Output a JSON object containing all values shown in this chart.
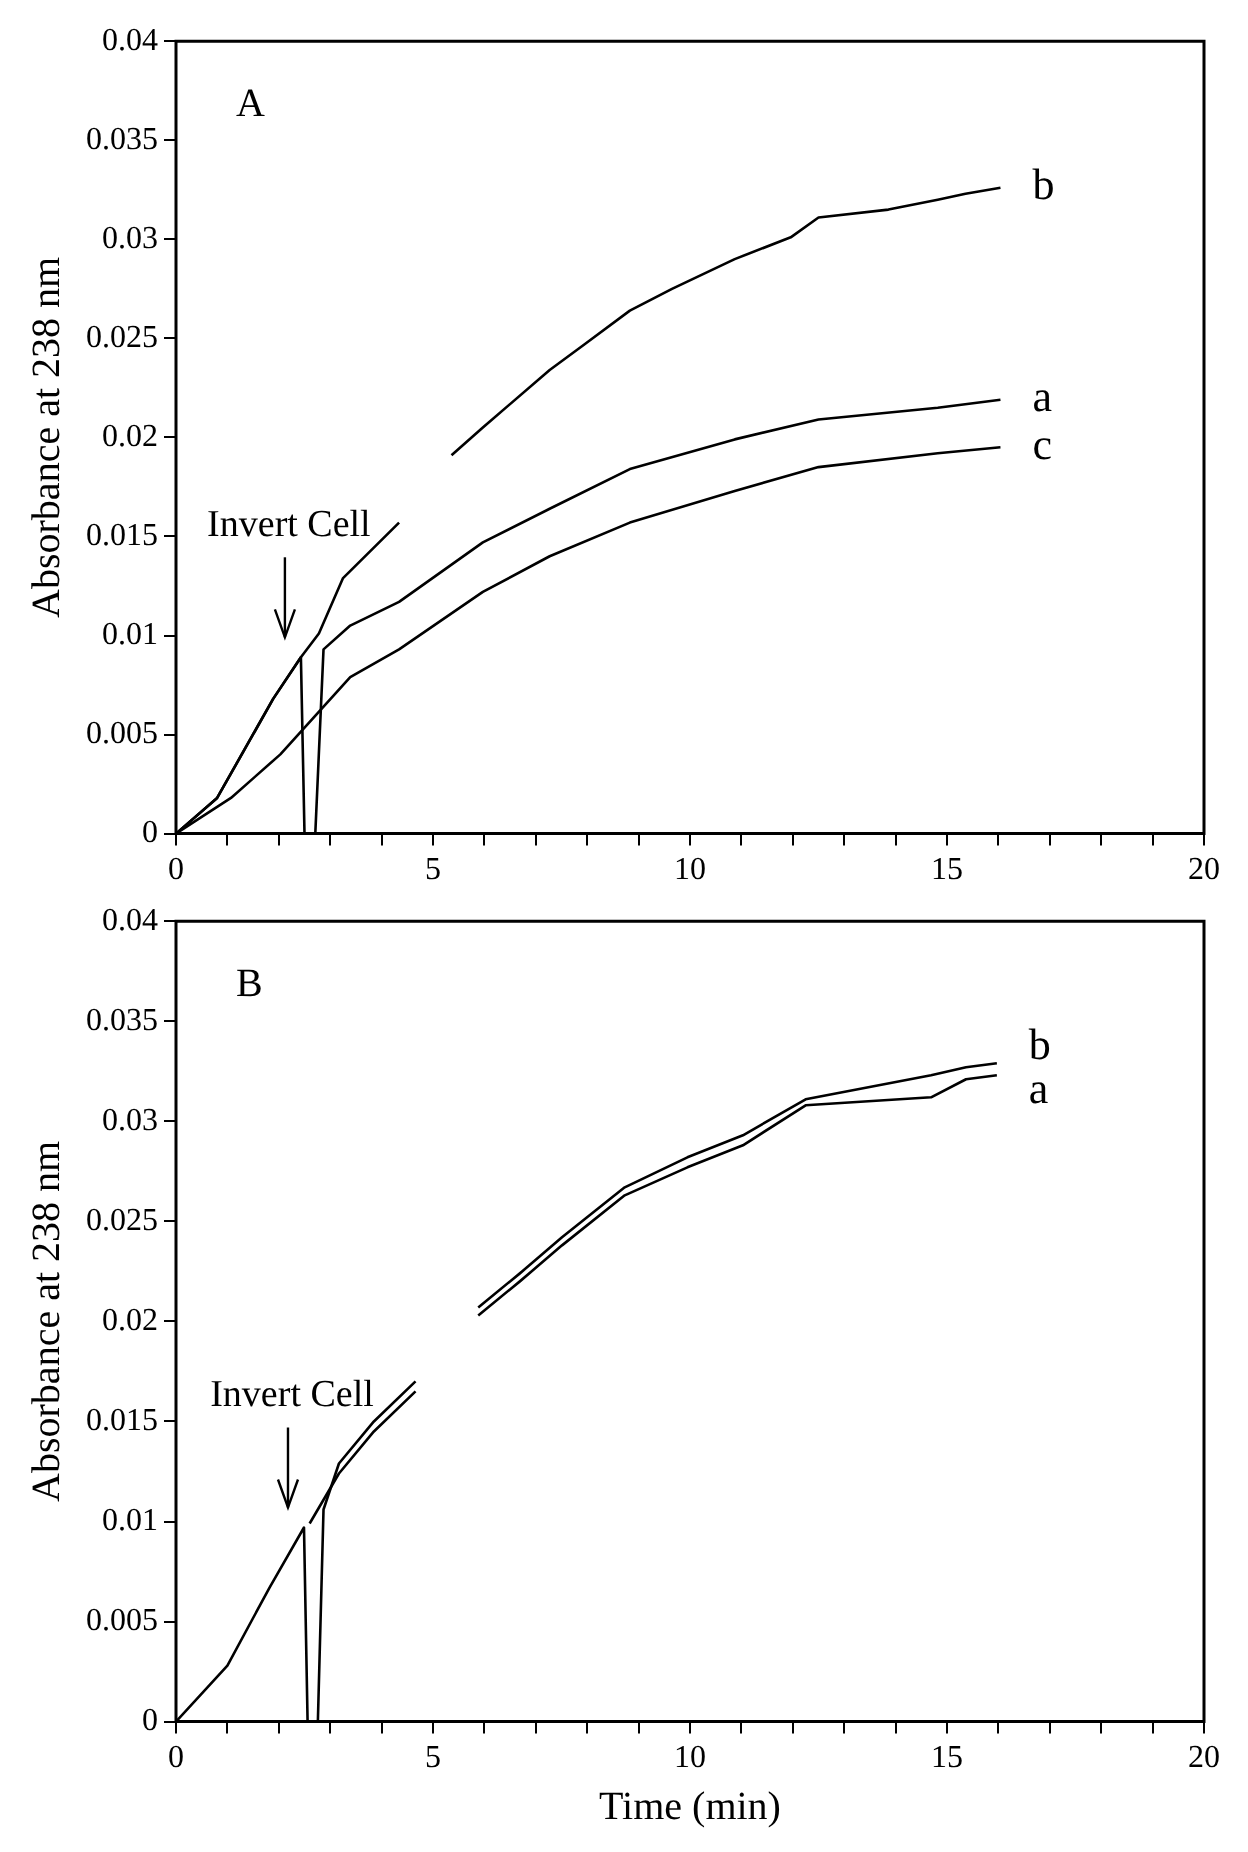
{
  "chart_data": [
    {
      "type": "line",
      "title": "A",
      "ylabel": "Absorbance at 238 nm",
      "marker": "none",
      "xlim": [
        0,
        20
      ],
      "ylim": [
        0,
        0.04
      ],
      "xticks": [
        0,
        {
          "value": 1,
          "label": null
        },
        {
          "value": 2,
          "label": null
        },
        {
          "value": 3,
          "label": null
        },
        {
          "value": 4,
          "label": null
        },
        5,
        {
          "value": 6,
          "label": null
        },
        {
          "value": 7,
          "label": null
        },
        {
          "value": 8,
          "label": null
        },
        {
          "value": 9,
          "label": null
        },
        10,
        {
          "value": 11,
          "label": null
        },
        {
          "value": 12,
          "label": null
        },
        {
          "value": 13,
          "label": null
        },
        {
          "value": 14,
          "label": null
        },
        15,
        {
          "value": 16,
          "label": null
        },
        {
          "value": 17,
          "label": null
        },
        {
          "value": 18,
          "label": null
        },
        {
          "value": 19,
          "label": null
        },
        20
      ],
      "yticks": [
        0,
        0.005,
        0.01,
        0.015,
        0.02,
        0.025,
        0.03,
        0.035,
        0.04
      ],
      "annotations": [
        {
          "text": "Invert Cell",
          "x": 2.43,
          "y": 0.0089
        }
      ],
      "series": [
        {
          "name": "b",
          "color": "#000000",
          "x": [
            0,
            0.8,
            1.89,
            2.43,
            2.78,
            3.25,
            4.34,
            4.85,
            5.36,
            5.97,
            7.27,
            7.95,
            8.83,
            9.65,
            10.87,
            11.96,
            12.5,
            13.86,
            14.82,
            15.36,
            16.04
          ],
          "values": [
            0,
            0.0018,
            0.0068,
            0.0089,
            0.0101,
            0.0129,
            0.0157,
            null,
            0.0191,
            0.0205,
            0.0234,
            0.0247,
            0.0264,
            0.0275,
            0.029,
            0.0301,
            0.0311,
            0.0315,
            0.032,
            0.0323,
            0.0326
          ]
        },
        {
          "name": "a",
          "color": "#000000",
          "x": [
            0,
            0.8,
            1.89,
            2.43,
            2.5,
            2.71,
            2.87,
            3.39,
            4.34,
            5.97,
            7.27,
            8.83,
            10.87,
            12.5,
            14.82,
            16.04
          ],
          "values": [
            0,
            0.0018,
            0.0068,
            0.0089,
            0,
            0,
            0.0093,
            0.0105,
            0.0117,
            0.0147,
            0.0164,
            0.0184,
            0.0199,
            0.0209,
            0.0215,
            0.0219
          ]
        },
        {
          "name": "c",
          "color": "#000000",
          "x": [
            0,
            1.07,
            2.03,
            3.39,
            4.34,
            5.97,
            7.27,
            8.83,
            10.87,
            12.5,
            14.82,
            16.04
          ],
          "values": [
            0,
            0.0018,
            0.004,
            0.0079,
            0.0093,
            0.0122,
            0.014,
            0.0157,
            0.0173,
            0.0185,
            0.0192,
            0.0195
          ]
        }
      ]
    },
    {
      "type": "line",
      "title": "B",
      "xlabel": "Time (min)",
      "ylabel": "Absorbance at 238 nm",
      "marker": "none",
      "xlim": [
        0,
        20
      ],
      "ylim": [
        0,
        0.04
      ],
      "xticks": [
        0,
        {
          "value": 1,
          "label": null
        },
        {
          "value": 2,
          "label": null
        },
        {
          "value": 3,
          "label": null
        },
        {
          "value": 4,
          "label": null
        },
        5,
        {
          "value": 6,
          "label": null
        },
        {
          "value": 7,
          "label": null
        },
        {
          "value": 8,
          "label": null
        },
        {
          "value": 9,
          "label": null
        },
        10,
        {
          "value": 11,
          "label": null
        },
        {
          "value": 12,
          "label": null
        },
        {
          "value": 13,
          "label": null
        },
        {
          "value": 14,
          "label": null
        },
        15,
        {
          "value": 16,
          "label": null
        },
        {
          "value": 17,
          "label": null
        },
        {
          "value": 18,
          "label": null
        },
        {
          "value": 19,
          "label": null
        },
        20
      ],
      "yticks": [
        0,
        0.005,
        0.01,
        0.015,
        0.02,
        0.025,
        0.03,
        0.035,
        0.04
      ],
      "annotations": [
        {
          "text": "Invert Cell",
          "x": 2.49,
          "y": 0.0097
        }
      ],
      "series": [
        {
          "name": "b",
          "color": "#000000",
          "x": [
            0,
            1,
            1.82,
            2.49,
            2.56,
            2.76,
            2.87,
            3.17,
            3.85,
            4.66,
            5.3,
            5.88,
            6.69,
            7.51,
            8.73,
            9.95,
            11.03,
            12.25,
            14.69,
            15.37,
            15.97
          ],
          "values": [
            0,
            0.0028,
            0.0067,
            0.0097,
            0,
            0,
            0.0106,
            0.0129,
            0.015,
            0.017,
            null,
            0.0207,
            0.0224,
            0.0242,
            0.0267,
            0.0282,
            0.0293,
            0.0311,
            0.0323,
            0.0327,
            0.0329
          ]
        },
        {
          "name": "a",
          "color": "#000000",
          "x": [
            2.6,
            3.17,
            3.85,
            4.66,
            5.3,
            5.88,
            6.69,
            7.51,
            8.73,
            9.95,
            11.03,
            12.25,
            14.69,
            15.37,
            15.97
          ],
          "values": [
            0.0099,
            0.0124,
            0.0145,
            0.0165,
            null,
            0.0203,
            0.022,
            0.0238,
            0.0263,
            0.0277,
            0.0288,
            0.0308,
            0.0312,
            0.0321,
            0.0323
          ]
        }
      ]
    }
  ]
}
